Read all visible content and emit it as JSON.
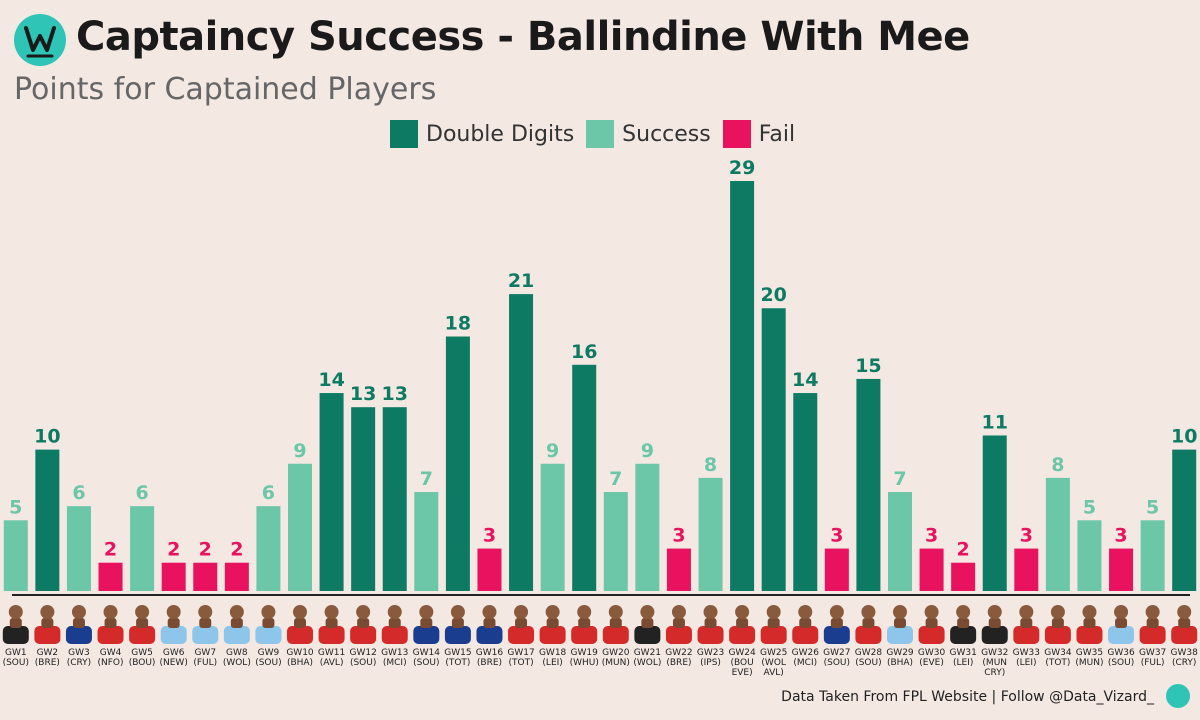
{
  "title": "Captaincy Success - Ballindine With Mee",
  "subtitle": "Points for Captained Players",
  "footer": "Data Taken From FPL Website | Follow @Data_Vizard_",
  "logo_icon": "wizard-hat-icon",
  "colors": {
    "double_digits": "#0d7a63",
    "success": "#6cc6a8",
    "fail": "#e8125e",
    "background": "#f3e8e2"
  },
  "legend": [
    {
      "label": "Double Digits",
      "color": "#0d7a63"
    },
    {
      "label": "Success",
      "color": "#6cc6a8"
    },
    {
      "label": "Fail",
      "color": "#e8125e"
    }
  ],
  "chart_data": {
    "type": "bar",
    "title": "Captaincy Success - Ballindine With Mee",
    "subtitle": "Points for Captained Players",
    "ylim": [
      0,
      29
    ],
    "grid": false,
    "legend_position": "top-center",
    "categories": [
      "GW1",
      "GW2",
      "GW3",
      "GW4",
      "GW5",
      "GW6",
      "GW7",
      "GW8",
      "GW9",
      "GW10",
      "GW11",
      "GW12",
      "GW13",
      "GW14",
      "GW15",
      "GW16",
      "GW17",
      "GW18",
      "GW19",
      "GW20",
      "GW21",
      "GW22",
      "GW23",
      "GW24",
      "GW25",
      "GW26",
      "GW27",
      "GW28",
      "GW29",
      "GW30",
      "GW31",
      "GW32",
      "GW33",
      "GW34",
      "GW35",
      "GW36",
      "GW37",
      "GW38"
    ],
    "opponents": [
      "(SOU)",
      "(BRE)",
      "(CRY)",
      "(NFO)",
      "(BOU)",
      "(NEW)",
      "(FUL)",
      "(WOL)",
      "(SOU)",
      "(BHA)",
      "(AVL)",
      "(SOU)",
      "(MCI)",
      "(SOU)",
      "(TOT)",
      "(BRE)",
      "(TOT)",
      "(LEI)",
      "(WHU)",
      "(MUN)",
      "(WOL)",
      "(BRE)",
      "(IPS)",
      "(BOU EVE)",
      "(WOL AVL)",
      "(MCI)",
      "(SOU)",
      "(SOU)",
      "(BHA)",
      "(EVE)",
      "(LEI)",
      "(MUN CRY)",
      "(LEI)",
      "(TOT)",
      "(MUN)",
      "(SOU)",
      "(FUL)",
      "(CRY)"
    ],
    "values": [
      5,
      10,
      6,
      2,
      6,
      2,
      2,
      2,
      6,
      9,
      14,
      13,
      13,
      7,
      18,
      3,
      21,
      9,
      16,
      7,
      9,
      3,
      8,
      29,
      20,
      14,
      3,
      15,
      7,
      3,
      2,
      11,
      3,
      8,
      5,
      3,
      5,
      10
    ],
    "categories_status": [
      "Success",
      "Double Digits",
      "Success",
      "Fail",
      "Success",
      "Fail",
      "Fail",
      "Fail",
      "Success",
      "Success",
      "Double Digits",
      "Double Digits",
      "Double Digits",
      "Success",
      "Double Digits",
      "Fail",
      "Double Digits",
      "Success",
      "Double Digits",
      "Success",
      "Success",
      "Fail",
      "Success",
      "Double Digits",
      "Double Digits",
      "Double Digits",
      "Fail",
      "Double Digits",
      "Success",
      "Fail",
      "Fail",
      "Double Digits",
      "Fail",
      "Success",
      "Success",
      "Fail",
      "Success",
      "Double Digits"
    ],
    "kit_colors": [
      "#222222",
      "#d42a2a",
      "#1b3d8f",
      "#d42a2a",
      "#d42a2a",
      "#8ec5ea",
      "#8ec5ea",
      "#8ec5ea",
      "#8ec5ea",
      "#d42a2a",
      "#d42a2a",
      "#d42a2a",
      "#d42a2a",
      "#1b3d8f",
      "#1b3d8f",
      "#1b3d8f",
      "#d42a2a",
      "#d42a2a",
      "#d42a2a",
      "#d42a2a",
      "#222222",
      "#d42a2a",
      "#d42a2a",
      "#d42a2a",
      "#d42a2a",
      "#d42a2a",
      "#1b3d8f",
      "#d42a2a",
      "#8ec5ea",
      "#d42a2a",
      "#222222",
      "#222222",
      "#d42a2a",
      "#d42a2a",
      "#d42a2a",
      "#8ec5ea",
      "#d42a2a",
      "#d42a2a"
    ]
  }
}
